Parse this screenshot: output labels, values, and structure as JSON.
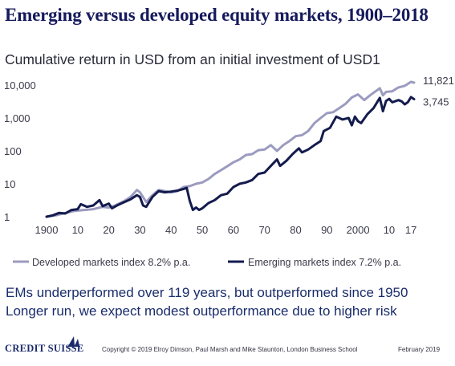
{
  "title": "Emerging versus developed equity markets, 1900–2018",
  "subtitle": "Cumulative return in USD from an initial investment of USD1",
  "notes": [
    "EMs underperformed over 119 years, but outperformed since 1950",
    "Longer run, we expect modest outperformance due to higher risk"
  ],
  "footer": {
    "logo": "Credit Suisse",
    "copyright": "Copyright © 2019 Elroy Dimson, Paul Marsh and Mike Staunton, London Business School",
    "date": "February 2019"
  },
  "chart_data": {
    "type": "line",
    "y_scale": "log",
    "ylim": [
      1,
      10000
    ],
    "xlim": [
      1900,
      2018
    ],
    "y_ticks": [
      1,
      10,
      100,
      1000,
      10000
    ],
    "y_tick_labels": [
      "1",
      "10",
      "100",
      "1,000",
      "10,000"
    ],
    "x_ticks": [
      1900,
      1910,
      1920,
      1930,
      1940,
      1950,
      1960,
      1970,
      1980,
      1990,
      2000,
      2010,
      2017
    ],
    "x_tick_labels": [
      "1900",
      "10",
      "20",
      "30",
      "40",
      "50",
      "60",
      "70",
      "80",
      "90",
      "2000",
      "10",
      "17"
    ],
    "grid": false,
    "legend_position": "bottom",
    "end_labels": [
      "11,821",
      "3,745"
    ],
    "series": [
      {
        "name": "Developed markets index 8.2% p.a.",
        "color": "#9b9bc0",
        "points": [
          [
            1900,
            1.0
          ],
          [
            1903,
            1.1
          ],
          [
            1906,
            1.3
          ],
          [
            1909,
            1.5
          ],
          [
            1912,
            1.6
          ],
          [
            1915,
            1.7
          ],
          [
            1918,
            2.0
          ],
          [
            1920,
            1.9
          ],
          [
            1922,
            2.2
          ],
          [
            1925,
            3.0
          ],
          [
            1927,
            4.0
          ],
          [
            1929,
            6.5
          ],
          [
            1930,
            5.5
          ],
          [
            1932,
            2.8
          ],
          [
            1934,
            4.5
          ],
          [
            1936,
            6.5
          ],
          [
            1938,
            6.0
          ],
          [
            1940,
            5.5
          ],
          [
            1942,
            6.0
          ],
          [
            1944,
            8.0
          ],
          [
            1946,
            8.5
          ],
          [
            1948,
            10.0
          ],
          [
            1950,
            11.0
          ],
          [
            1952,
            14.0
          ],
          [
            1954,
            20.0
          ],
          [
            1956,
            26.0
          ],
          [
            1958,
            34.0
          ],
          [
            1960,
            45.0
          ],
          [
            1962,
            55.0
          ],
          [
            1964,
            75.0
          ],
          [
            1966,
            80.0
          ],
          [
            1968,
            105.0
          ],
          [
            1970,
            110.0
          ],
          [
            1972,
            150.0
          ],
          [
            1974,
            100.0
          ],
          [
            1976,
            150.0
          ],
          [
            1978,
            200.0
          ],
          [
            1980,
            280.0
          ],
          [
            1982,
            300.0
          ],
          [
            1984,
            400.0
          ],
          [
            1986,
            700.0
          ],
          [
            1988,
            1000.0
          ],
          [
            1990,
            1400.0
          ],
          [
            1992,
            1500.0
          ],
          [
            1994,
            2000.0
          ],
          [
            1996,
            2700.0
          ],
          [
            1998,
            4200.0
          ],
          [
            2000,
            5200.0
          ],
          [
            2002,
            3500.0
          ],
          [
            2004,
            5000.0
          ],
          [
            2007,
            8000.0
          ],
          [
            2008,
            4900.0
          ],
          [
            2009,
            6200.0
          ],
          [
            2011,
            6500.0
          ],
          [
            2013,
            8500.0
          ],
          [
            2015,
            9500.0
          ],
          [
            2017,
            12500.0
          ],
          [
            2018,
            11821.0
          ]
        ]
      },
      {
        "name": "Emerging markets index 7.2% p.a.",
        "color": "#141b4d",
        "points": [
          [
            1900,
            1.0
          ],
          [
            1902,
            1.1
          ],
          [
            1904,
            1.3
          ],
          [
            1906,
            1.25
          ],
          [
            1908,
            1.6
          ],
          [
            1910,
            1.7
          ],
          [
            1911,
            2.4
          ],
          [
            1913,
            2.0
          ],
          [
            1915,
            2.2
          ],
          [
            1917,
            3.2
          ],
          [
            1918,
            2.1
          ],
          [
            1920,
            2.5
          ],
          [
            1921,
            1.8
          ],
          [
            1923,
            2.3
          ],
          [
            1925,
            2.8
          ],
          [
            1927,
            3.4
          ],
          [
            1929,
            4.5
          ],
          [
            1930,
            4.0
          ],
          [
            1931,
            2.2
          ],
          [
            1932,
            2.0
          ],
          [
            1934,
            4.0
          ],
          [
            1936,
            6.0
          ],
          [
            1938,
            5.5
          ],
          [
            1940,
            5.8
          ],
          [
            1942,
            6.2
          ],
          [
            1944,
            7.0
          ],
          [
            1945,
            7.5
          ],
          [
            1946,
            3.0
          ],
          [
            1947,
            1.6
          ],
          [
            1948,
            1.9
          ],
          [
            1949,
            1.6
          ],
          [
            1950,
            1.8
          ],
          [
            1952,
            2.6
          ],
          [
            1954,
            3.2
          ],
          [
            1956,
            4.5
          ],
          [
            1958,
            5.0
          ],
          [
            1960,
            8.0
          ],
          [
            1962,
            10.0
          ],
          [
            1964,
            11.0
          ],
          [
            1966,
            13.0
          ],
          [
            1968,
            20.0
          ],
          [
            1970,
            22.0
          ],
          [
            1972,
            35.0
          ],
          [
            1974,
            55.0
          ],
          [
            1975,
            35.0
          ],
          [
            1977,
            50.0
          ],
          [
            1979,
            80.0
          ],
          [
            1981,
            120.0
          ],
          [
            1982,
            90.0
          ],
          [
            1984,
            110.0
          ],
          [
            1986,
            150.0
          ],
          [
            1988,
            200.0
          ],
          [
            1989,
            400.0
          ],
          [
            1991,
            500.0
          ],
          [
            1993,
            1100.0
          ],
          [
            1995,
            900.0
          ],
          [
            1997,
            1000.0
          ],
          [
            1998,
            600.0
          ],
          [
            1999,
            1100.0
          ],
          [
            2000,
            800.0
          ],
          [
            2001,
            700.0
          ],
          [
            2003,
            1300.0
          ],
          [
            2005,
            2000.0
          ],
          [
            2007,
            4100.0
          ],
          [
            2008,
            1600.0
          ],
          [
            2009,
            3300.0
          ],
          [
            2010,
            3800.0
          ],
          [
            2011,
            3000.0
          ],
          [
            2013,
            3500.0
          ],
          [
            2014,
            3200.0
          ],
          [
            2015,
            2600.0
          ],
          [
            2016,
            3000.0
          ],
          [
            2017,
            4300.0
          ],
          [
            2018,
            3745.0
          ]
        ]
      }
    ]
  }
}
